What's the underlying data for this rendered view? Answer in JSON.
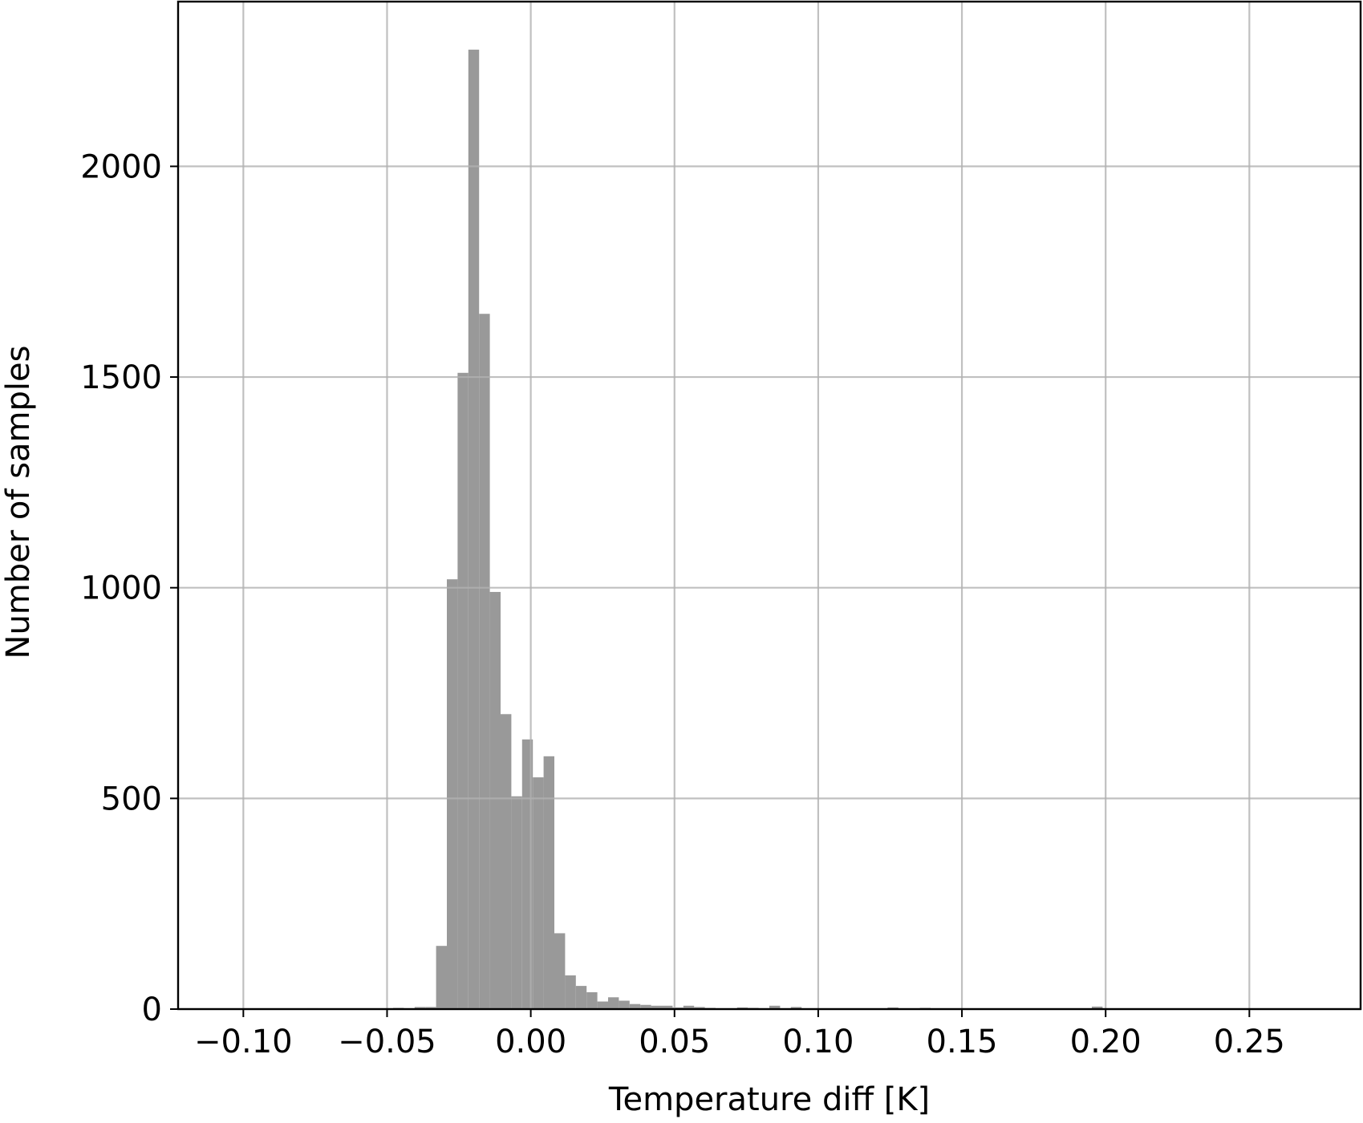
{
  "chart_data": {
    "type": "histogram",
    "x_label": "Temperature diff [K]",
    "y_label": "Number of samples",
    "color": "#999999",
    "grid": true,
    "bins": [
      -0.104,
      -0.10026,
      -0.09652,
      -0.09278,
      -0.08904,
      -0.0853,
      -0.08156,
      -0.07782,
      -0.07408,
      -0.07034,
      -0.0666,
      -0.06286,
      -0.05912,
      -0.05538,
      -0.05164,
      -0.0479,
      -0.04416,
      -0.04042,
      -0.03668,
      -0.03294,
      -0.0292,
      -0.02546,
      -0.02172,
      -0.01798,
      -0.01424,
      -0.0105,
      -0.00676,
      -0.00302,
      0.00072,
      0.00446,
      0.0082,
      0.01194,
      0.01568,
      0.01942,
      0.02316,
      0.0269,
      0.03064,
      0.03438,
      0.03812,
      0.04186,
      0.0456,
      0.04934,
      0.05308,
      0.05682,
      0.06056,
      0.0643,
      0.06804,
      0.07178,
      0.07552,
      0.07926,
      0.083,
      0.08674,
      0.09048,
      0.09422,
      0.09796,
      0.1017,
      0.10544,
      0.10918,
      0.11292,
      0.11666,
      0.1204,
      0.12414,
      0.12788,
      0.13162,
      0.13536,
      0.1391,
      0.14284,
      0.14658,
      0.15032,
      0.15406,
      0.1578,
      0.16154,
      0.16528,
      0.16902,
      0.17276,
      0.1765,
      0.18024,
      0.18398,
      0.18772,
      0.19146,
      0.1952,
      0.19894,
      0.20268,
      0.20642,
      0.21016,
      0.2139,
      0.21764,
      0.22138,
      0.22512,
      0.22886,
      0.2326,
      0.23634,
      0.24008,
      0.24382,
      0.24756,
      0.2513,
      0.25504,
      0.25878,
      0.26252,
      0.26626,
      0.27
    ],
    "values": [
      0,
      0,
      0,
      0,
      0,
      0,
      0,
      2,
      0,
      0,
      0,
      0,
      0,
      0,
      0,
      3,
      2,
      5,
      5,
      150,
      1020,
      1510,
      2277,
      1650,
      990,
      700,
      505,
      640,
      550,
      600,
      180,
      80,
      55,
      40,
      18,
      28,
      20,
      12,
      10,
      8,
      8,
      4,
      8,
      5,
      3,
      2,
      2,
      4,
      3,
      2,
      8,
      2,
      5,
      0,
      0,
      0,
      0,
      0,
      0,
      0,
      0,
      4,
      0,
      0,
      3,
      0,
      0,
      0,
      0,
      0,
      0,
      0,
      0,
      0,
      0,
      0,
      0,
      0,
      0,
      0,
      6,
      0,
      0,
      0,
      0,
      0,
      0,
      0,
      0,
      0,
      0,
      0,
      0,
      0,
      0,
      0,
      0,
      0,
      0,
      0
    ],
    "xlim": [
      -0.1227,
      0.2887
    ],
    "ylim": [
      0,
      2391
    ],
    "xticks": [
      {
        "value": -0.1,
        "label": "−0.10"
      },
      {
        "value": -0.05,
        "label": "−0.05"
      },
      {
        "value": 0,
        "label": "0.00"
      },
      0.05,
      {
        "value": 0.1,
        "label": "0.10"
      },
      0.15,
      {
        "value": 0.2,
        "label": "0.20"
      },
      0.25
    ],
    "yticks": [
      0,
      500,
      1000,
      1500,
      2000
    ]
  }
}
